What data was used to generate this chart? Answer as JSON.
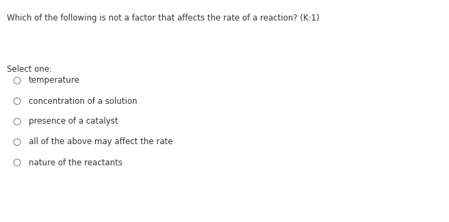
{
  "question": "Which of the following is not a factor that affects the rate of a reaction? (K:1)",
  "select_label": "Select one:",
  "options": [
    "temperature",
    "concentration of a solution",
    "presence of a catalyst",
    "all of the above may affect the rate",
    "nature of the reactants"
  ],
  "background_color": "#ffffff",
  "text_color": "#333333",
  "circle_edge_color": "#999999",
  "question_fontsize": 8.5,
  "select_fontsize": 8.5,
  "option_fontsize": 8.5,
  "fig_width": 6.56,
  "fig_height": 3.25
}
